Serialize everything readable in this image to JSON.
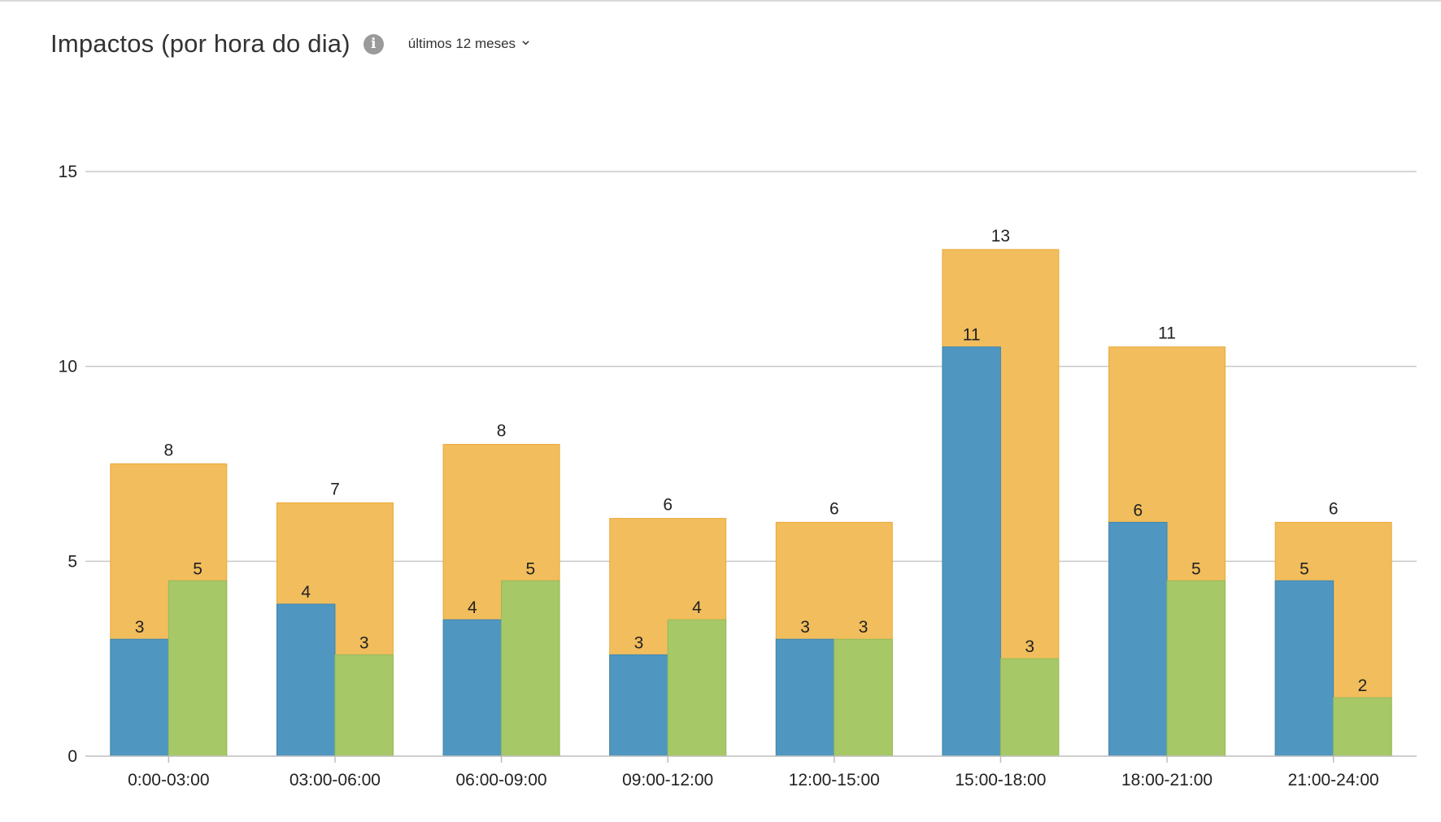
{
  "header": {
    "title": "Impactos (por hora do dia)",
    "info_icon": "info-icon",
    "info_glyph": "i",
    "period_label": "últimos 12 meses",
    "chevron_icon": "chevron-down-icon"
  },
  "colors": {
    "total": "#f2bd5c",
    "series_a": "#4f97c1",
    "series_b": "#a6c867",
    "grid": "#c8c8c8",
    "axis": "#bdbdbd"
  },
  "chart_data": {
    "type": "bar",
    "title": "Impactos (por hora do dia)",
    "xlabel": "",
    "ylabel": "",
    "ylim": [
      0,
      15
    ],
    "yticks": [
      0,
      5,
      10,
      15
    ],
    "grid": true,
    "categories": [
      "0:00-03:00",
      "03:00-06:00",
      "06:00-09:00",
      "09:00-12:00",
      "12:00-15:00",
      "15:00-18:00",
      "18:00-21:00",
      "21:00-24:00"
    ],
    "series": [
      {
        "role": "total",
        "values": [
          7.5,
          6.5,
          8,
          6.1,
          6,
          13,
          10.5,
          6
        ],
        "labels": [
          "8",
          "7",
          "8",
          "6",
          "6",
          "13",
          "11",
          "6"
        ]
      },
      {
        "role": "left",
        "values": [
          3,
          3.9,
          3.5,
          2.6,
          3,
          10.5,
          6,
          4.5
        ],
        "labels": [
          "3",
          "4",
          "4",
          "3",
          "3",
          "11",
          "6",
          "5"
        ]
      },
      {
        "role": "right",
        "values": [
          4.5,
          2.6,
          4.5,
          3.5,
          3,
          2.5,
          4.5,
          1.5
        ],
        "labels": [
          "5",
          "3",
          "5",
          "4",
          "3",
          "3",
          "5",
          "2"
        ]
      }
    ]
  }
}
